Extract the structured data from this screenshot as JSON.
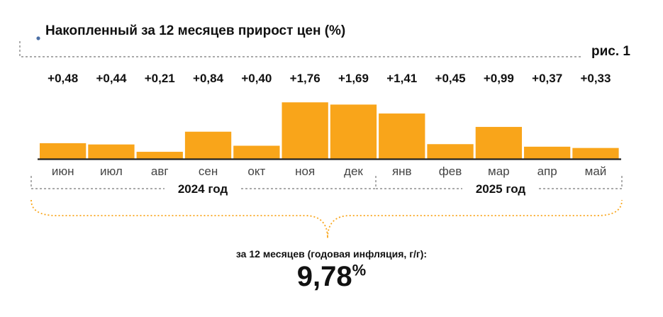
{
  "header": {
    "title": "Накопленный за 12 месяцев прирост цен (%)",
    "figure_label": "рис. 1"
  },
  "colors": {
    "bar": "#F9A51A",
    "axis": "#222222",
    "dashed": "#777777",
    "brace": "#F9A51A",
    "title_dot": "#4C6FA5"
  },
  "chart_data": {
    "type": "bar",
    "title": "Накопленный за 12 месяцев прирост цен (%)",
    "categories": [
      "июн",
      "июл",
      "авг",
      "сен",
      "окт",
      "ноя",
      "дек",
      "янв",
      "фев",
      "мар",
      "апр",
      "май"
    ],
    "values": [
      0.48,
      0.44,
      0.21,
      0.84,
      0.4,
      1.76,
      1.69,
      1.41,
      0.45,
      0.99,
      0.37,
      0.33
    ],
    "value_labels": [
      "+0,48",
      "+0,44",
      "+0,21",
      "+0,84",
      "+0,40",
      "+1,76",
      "+1,69",
      "+1,41",
      "+0,45",
      "+0,99",
      "+0,37",
      "+0,33"
    ],
    "groups": [
      {
        "label": "2024 год",
        "categories": [
          "июн",
          "июл",
          "авг",
          "сен",
          "окт",
          "ноя",
          "дек"
        ]
      },
      {
        "label": "2025 год",
        "categories": [
          "янв",
          "фев",
          "мар",
          "апр",
          "май"
        ]
      }
    ],
    "ylim": [
      0,
      1.8
    ],
    "grid": false,
    "legend": "none"
  },
  "summary": {
    "caption": "за 12 месяцев (годовая инфляция, г/г):",
    "value": "9,78",
    "unit": "%"
  }
}
